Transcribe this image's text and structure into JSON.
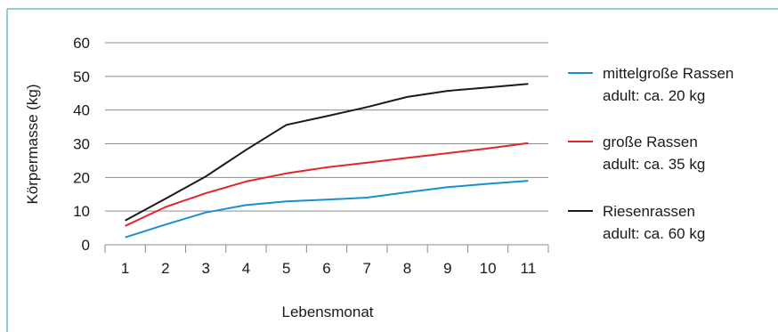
{
  "chart_data": {
    "type": "line",
    "x": [
      1,
      2,
      3,
      4,
      5,
      6,
      7,
      8,
      9,
      10,
      11
    ],
    "xlabel": "Lebensmonat",
    "ylabel": "Körpermasse (kg)",
    "ylim": [
      0,
      60
    ],
    "yticks": [
      0,
      10,
      20,
      30,
      40,
      50,
      60
    ],
    "grid": "horizontal",
    "legend_placement": "right",
    "series": [
      {
        "name": "mittelgroße Rassen",
        "name_line2": "adult: ca. 20 kg",
        "color": "#1b8fd0",
        "values": [
          2.2,
          6.0,
          9.6,
          11.8,
          12.9,
          13.4,
          14.0,
          15.6,
          17.1,
          18.1,
          19.0
        ]
      },
      {
        "name": "große Rassen",
        "name_line2": "adult: ca. 35 kg",
        "color": "#e3262d",
        "values": [
          5.6,
          11.2,
          15.3,
          18.8,
          21.2,
          23.0,
          24.4,
          25.8,
          27.2,
          28.6,
          30.2
        ]
      },
      {
        "name": "Riesenrassen",
        "name_line2": "adult: ca. 60 kg",
        "color": "#1a1a1a",
        "values": [
          7.2,
          13.7,
          20.3,
          28.2,
          35.6,
          38.2,
          40.9,
          43.9,
          45.7,
          46.7,
          47.8
        ]
      }
    ]
  }
}
